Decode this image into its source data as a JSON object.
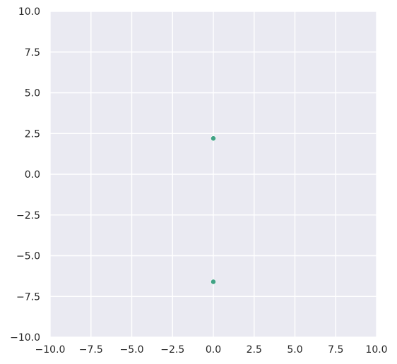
{
  "chart_data": {
    "type": "scatter",
    "title": "",
    "xlabel": "",
    "ylabel": "",
    "xlim": [
      -10,
      10
    ],
    "ylim": [
      -10,
      10
    ],
    "x_ticks": [
      -10,
      -7.5,
      -5,
      -2.5,
      0,
      2.5,
      5,
      7.5,
      10
    ],
    "y_ticks": [
      -10,
      -7.5,
      -5,
      -2.5,
      0,
      2.5,
      5,
      7.5,
      10
    ],
    "x_tick_labels": [
      "−10.0",
      "−7.5",
      "−5.0",
      "−2.5",
      "0.0",
      "2.5",
      "5.0",
      "7.5",
      "10.0"
    ],
    "y_tick_labels": [
      "−10.0",
      "−7.5",
      "−5.0",
      "−2.5",
      "0.0",
      "2.5",
      "5.0",
      "7.5",
      "10.0"
    ],
    "grid": true,
    "legend": "none",
    "series": [
      {
        "color": "#41a385",
        "points": [
          {
            "x": 0.0,
            "y": 2.2
          },
          {
            "x": 0.0,
            "y": -6.6
          }
        ]
      }
    ],
    "background_color": "#eaeaf2",
    "grid_color": "#ffffff"
  }
}
